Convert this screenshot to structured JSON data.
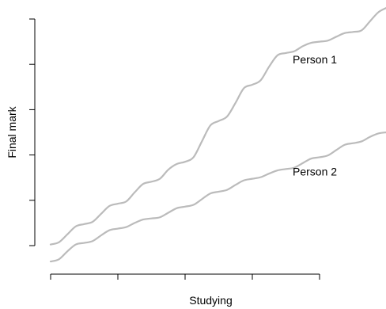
{
  "chart_data": {
    "type": "line",
    "title": "",
    "xlabel": "Studying",
    "ylabel": "Final mark",
    "xlim": [
      0,
      10
    ],
    "ylim": [
      0,
      10
    ],
    "x_ticks": [
      0,
      2,
      4,
      6,
      8
    ],
    "y_ticks": [
      0,
      2,
      4,
      6,
      8,
      10
    ],
    "show_tick_labels": false,
    "grid": false,
    "line_color": "#bbbbbb",
    "series": [
      {
        "name": "Person 1",
        "x": [
          0,
          0.25,
          0.5,
          0.75,
          1,
          1.25,
          1.5,
          1.75,
          2,
          2.25,
          2.5,
          2.75,
          3,
          3.25,
          3.5,
          3.75,
          4,
          4.25,
          4.5,
          4.75,
          5,
          5.25,
          5.5,
          5.75,
          6,
          6.25,
          6.5,
          6.75,
          7,
          7.25,
          7.5,
          7.75,
          8,
          8.25,
          8.5,
          8.75,
          9,
          9.25,
          9.5,
          9.75,
          10
        ],
        "y": [
          0.05,
          0.15,
          0.5,
          0.85,
          0.95,
          1.05,
          1.4,
          1.75,
          1.85,
          1.95,
          2.35,
          2.72,
          2.82,
          2.95,
          3.35,
          3.6,
          3.7,
          3.9,
          4.6,
          5.3,
          5.5,
          5.7,
          6.3,
          6.95,
          7.1,
          7.3,
          7.9,
          8.4,
          8.5,
          8.58,
          8.8,
          8.95,
          9.0,
          9.05,
          9.22,
          9.38,
          9.43,
          9.5,
          9.9,
          10.3,
          10.5
        ]
      },
      {
        "name": "Person 2",
        "x": [
          0,
          0.25,
          0.5,
          0.75,
          1,
          1.25,
          1.5,
          1.75,
          2,
          2.25,
          2.5,
          2.75,
          3,
          3.25,
          3.5,
          3.75,
          4,
          4.25,
          4.5,
          4.75,
          5,
          5.25,
          5.5,
          5.75,
          6,
          6.25,
          6.5,
          6.75,
          7,
          7.25,
          7.5,
          7.75,
          8,
          8.25,
          8.5,
          8.75,
          9,
          9.25,
          9.5,
          9.75,
          10
        ],
        "y": [
          -0.7,
          -0.6,
          -0.25,
          0.05,
          0.12,
          0.2,
          0.45,
          0.68,
          0.75,
          0.82,
          1.0,
          1.15,
          1.2,
          1.25,
          1.45,
          1.65,
          1.72,
          1.8,
          2.05,
          2.3,
          2.38,
          2.46,
          2.68,
          2.88,
          2.95,
          3.02,
          3.18,
          3.32,
          3.38,
          3.44,
          3.64,
          3.84,
          3.9,
          3.98,
          4.22,
          4.45,
          4.52,
          4.6,
          4.8,
          4.95,
          5.0
        ]
      }
    ],
    "annotations": [
      {
        "text": "Person 1",
        "x": 7.2,
        "y": 8.05
      },
      {
        "text": "Person 2",
        "x": 7.2,
        "y": 3.1
      }
    ]
  }
}
